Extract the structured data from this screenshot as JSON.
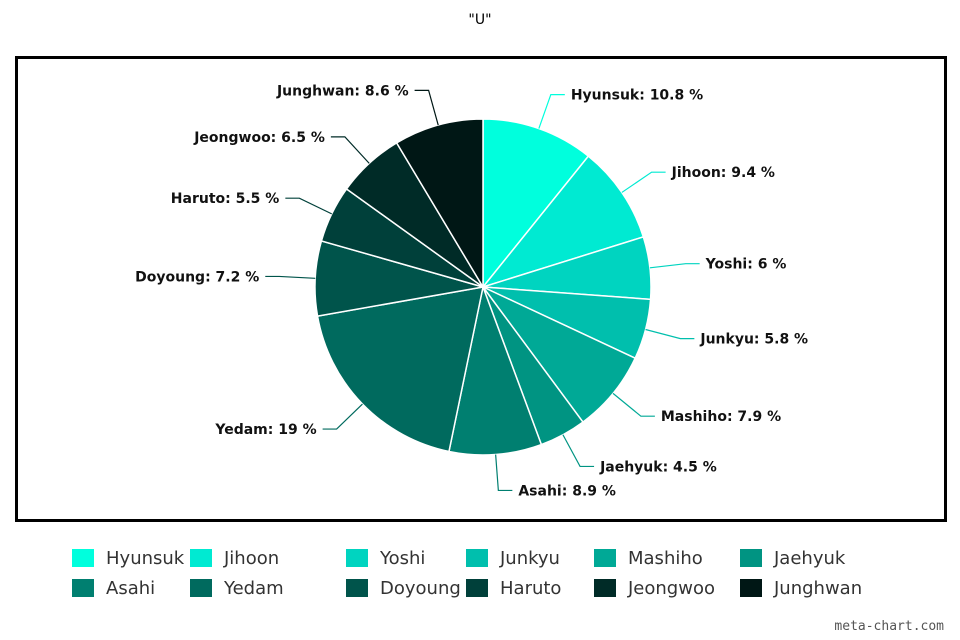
{
  "chart_data": {
    "type": "pie",
    "title": "\"U\"",
    "label_format": "{name}: {value} %",
    "slices": [
      {
        "name": "Hyunsuk",
        "value": 10.8,
        "color": "#00FFDD"
      },
      {
        "name": "Jihoon",
        "value": 9.4,
        "color": "#00EAD2"
      },
      {
        "name": "Yoshi",
        "value": 6,
        "color": "#00D4C0"
      },
      {
        "name": "Junkyu",
        "value": 5.8,
        "color": "#00BFAD"
      },
      {
        "name": "Mashiho",
        "value": 7.9,
        "color": "#00A996"
      },
      {
        "name": "Jaehyuk",
        "value": 4.5,
        "color": "#009482"
      },
      {
        "name": "Asahi",
        "value": 8.9,
        "color": "#007F70"
      },
      {
        "name": "Yedam",
        "value": 19,
        "color": "#006A5E"
      },
      {
        "name": "Doyoung",
        "value": 7.2,
        "color": "#00544B"
      },
      {
        "name": "Haruto",
        "value": 5.5,
        "color": "#00403A"
      },
      {
        "name": "Jeongwoo",
        "value": 6.5,
        "color": "#002B27"
      },
      {
        "name": "Junghwan",
        "value": 8.6,
        "color": "#001715"
      }
    ],
    "legend_position": "bottom"
  },
  "watermark": "meta-chart.com"
}
